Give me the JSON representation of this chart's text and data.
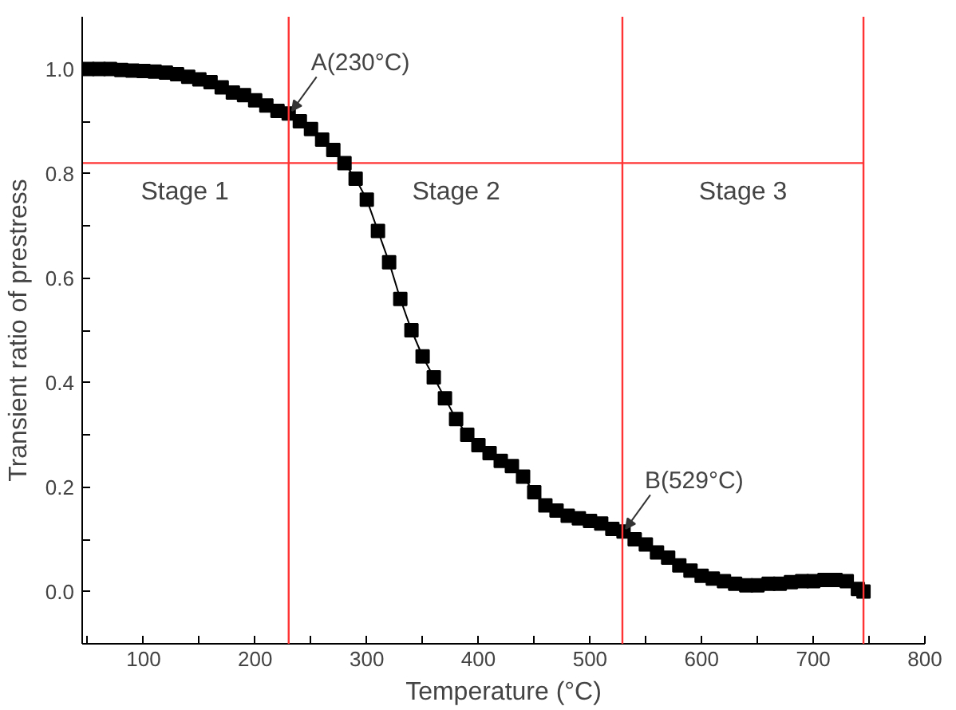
{
  "chart_data": {
    "type": "line",
    "xlabel": "Temperature (°C)",
    "ylabel": "Transient ratio of prestress",
    "marker": "square",
    "grid": false,
    "xlim": [
      45,
      800
    ],
    "ylim": [
      -0.1,
      1.1
    ],
    "xticks": [
      {
        "value": 50,
        "label": null
      },
      100,
      {
        "value": 150,
        "label": null
      },
      200,
      {
        "value": 250,
        "label": null
      },
      300,
      {
        "value": 350,
        "label": null
      },
      400,
      {
        "value": 450,
        "label": null
      },
      500,
      {
        "value": 550,
        "label": null
      },
      600,
      {
        "value": 650,
        "label": null
      },
      700,
      {
        "value": 750,
        "label": null
      },
      800
    ],
    "yticks": [
      {
        "value": 0,
        "label": "0.0"
      },
      {
        "value": 0.1,
        "label": null
      },
      {
        "value": 0.2,
        "label": "0.2"
      },
      {
        "value": 0.3,
        "label": null
      },
      {
        "value": 0.4,
        "label": "0.4"
      },
      {
        "value": 0.5,
        "label": null
      },
      {
        "value": 0.6,
        "label": "0.6"
      },
      {
        "value": 0.7,
        "label": null
      },
      {
        "value": 0.8,
        "label": "0.8"
      },
      {
        "value": 0.9,
        "label": null
      },
      {
        "value": 1.0,
        "label": "1.0"
      }
    ],
    "series": [
      {
        "color": "#000000",
        "x": [
          50,
          60,
          70,
          80,
          90,
          100,
          110,
          120,
          130,
          140,
          150,
          160,
          170,
          180,
          190,
          200,
          210,
          220,
          230,
          240,
          250,
          260,
          270,
          280,
          290,
          300,
          310,
          320,
          330,
          340,
          350,
          360,
          370,
          380,
          390,
          400,
          410,
          420,
          430,
          440,
          450,
          460,
          470,
          480,
          490,
          500,
          510,
          520,
          530,
          540,
          550,
          560,
          570,
          580,
          590,
          600,
          610,
          620,
          630,
          640,
          650,
          660,
          670,
          680,
          690,
          700,
          710,
          720,
          730,
          740,
          745
        ],
        "values": [
          1.0,
          1.0,
          1.0,
          0.998,
          0.997,
          0.996,
          0.995,
          0.993,
          0.99,
          0.985,
          0.98,
          0.975,
          0.965,
          0.955,
          0.95,
          0.94,
          0.93,
          0.92,
          0.915,
          0.9,
          0.885,
          0.865,
          0.845,
          0.82,
          0.79,
          0.75,
          0.69,
          0.63,
          0.56,
          0.5,
          0.45,
          0.41,
          0.37,
          0.33,
          0.3,
          0.28,
          0.265,
          0.25,
          0.24,
          0.22,
          0.19,
          0.165,
          0.155,
          0.145,
          0.14,
          0.135,
          0.13,
          0.12,
          0.115,
          0.1,
          0.09,
          0.075,
          0.065,
          0.05,
          0.04,
          0.03,
          0.025,
          0.02,
          0.015,
          0.012,
          0.012,
          0.015,
          0.015,
          0.018,
          0.02,
          0.02,
          0.022,
          0.022,
          0.02,
          0.005,
          0.0
        ]
      }
    ],
    "ref_lines": [
      {
        "axis": "x",
        "value": 230,
        "color": "#ff3333"
      },
      {
        "axis": "x",
        "value": 529,
        "color": "#ff3333"
      },
      {
        "axis": "x",
        "value": 745,
        "color": "#ff3333"
      },
      {
        "axis": "y",
        "value": 0.82,
        "color": "#ff3333"
      }
    ],
    "annotations": [
      {
        "text": "A(230°C)",
        "x": 230,
        "y": 0.915
      },
      {
        "text": "B(529°C)",
        "x": 529,
        "y": 0.115
      },
      {
        "text": "Stage 1",
        "x": 137,
        "y": 0.82
      },
      {
        "text": "Stage 2",
        "x": 380,
        "y": 0.82
      },
      {
        "text": "Stage 3",
        "x": 637,
        "y": 0.82
      }
    ]
  }
}
